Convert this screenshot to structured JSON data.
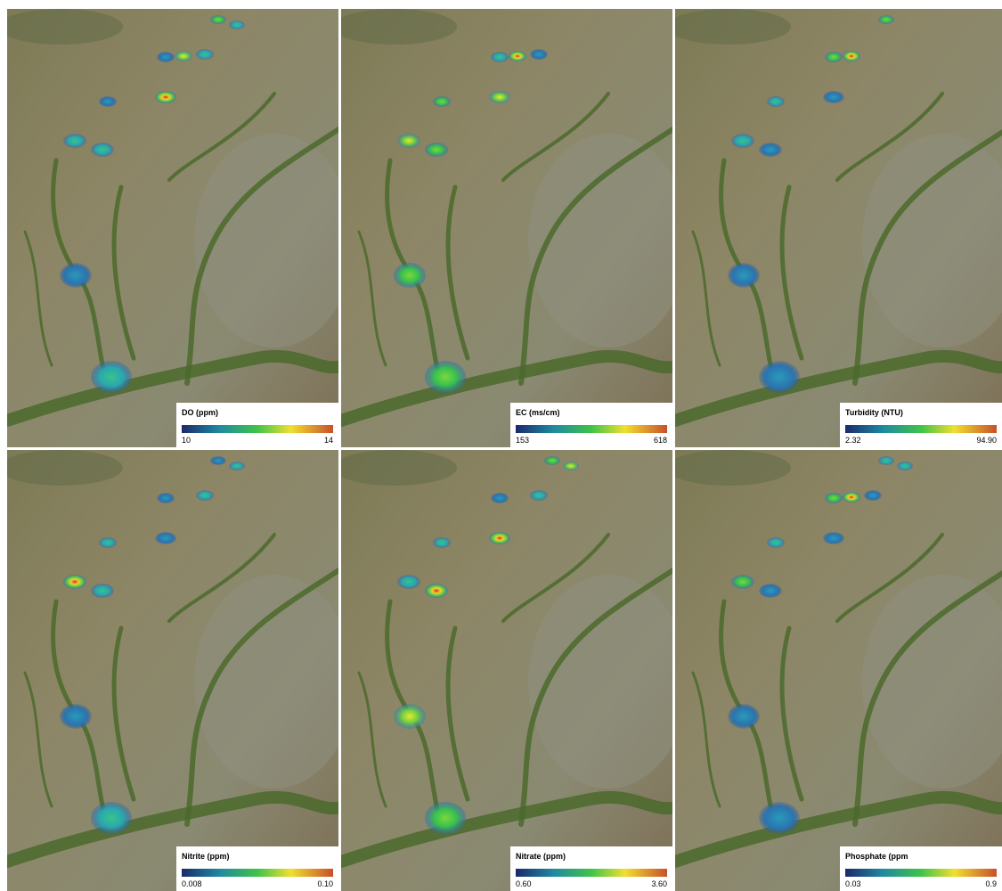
{
  "panels": [
    {
      "legend": {
        "title": "DO (ppm)",
        "min": "10",
        "max": "14"
      }
    },
    {
      "legend": {
        "title": "EC (ms/cm)",
        "min": "153",
        "max": "618"
      }
    },
    {
      "legend": {
        "title": "Turbidity (NTU)",
        "min": "2.32",
        "max": "94.90"
      }
    },
    {
      "legend": {
        "title": "Nitrite (ppm)",
        "min": "0.008",
        "max": "0.10"
      }
    },
    {
      "legend": {
        "title": "Nitrate (ppm)",
        "min": "0.60",
        "max": "3.60"
      }
    },
    {
      "legend": {
        "title": "Phosphate (ppm",
        "min": "0.03",
        "max": "0.9"
      }
    }
  ]
}
